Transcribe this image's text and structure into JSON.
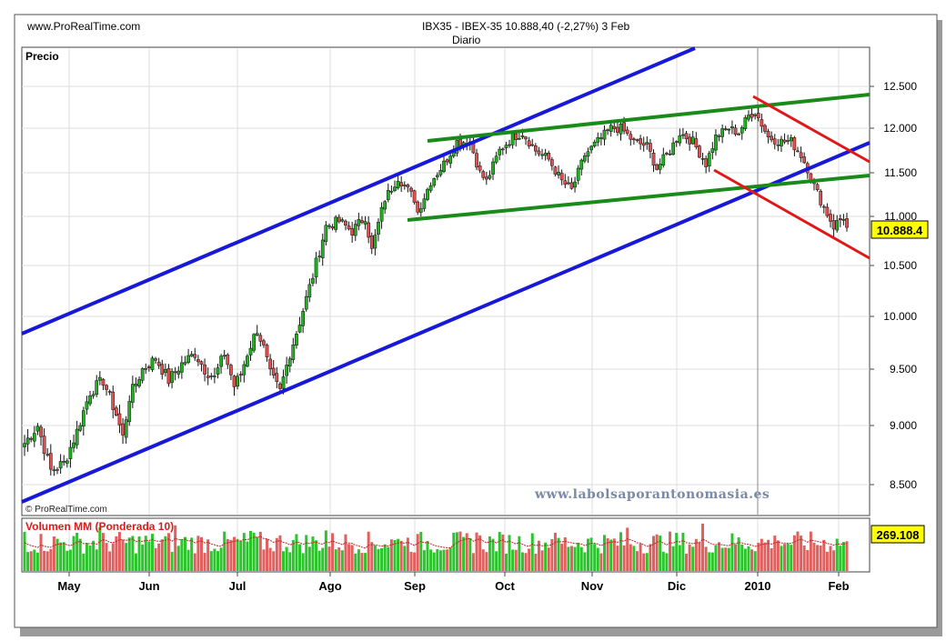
{
  "header": {
    "site": "www.ProRealTime.com",
    "instrument_line": "IBX35 - IBEX-35     10.888,40 (-2,27%)     3 Feb",
    "period": "Diario"
  },
  "price_panel": {
    "label": "Precio",
    "watermark": "© ProRealTime.com",
    "website": "www.labolsaporantonomasia.es",
    "last_price_label": "10.888.4"
  },
  "volume_panel": {
    "label": "Volumen MM (Ponderada 10)",
    "last_value_label": "269.108"
  },
  "colors": {
    "up": "#22b022",
    "down": "#e05050",
    "blue_channel": "#1818d8",
    "green_channel": "#1a8a1a",
    "red_channel": "#e01818",
    "volume_up": "#2cc42c",
    "volume_down": "#e06060",
    "volume_avg": "#c02020",
    "website_text": "#7a8aa8"
  },
  "chart_data": {
    "type": "candlestick",
    "title": "IBX35 - IBEX-35 10.888,40 (-2,27%) 3 Feb",
    "y_ticks": [
      "12.500",
      "12.000",
      "11.500",
      "11.000",
      "10.500",
      "10.000",
      "9.500",
      "9.000",
      "8.500"
    ],
    "y_tick_values": [
      12500,
      12000,
      11500,
      11000,
      10500,
      10000,
      9500,
      9000,
      8500
    ],
    "ylim": [
      8350,
      12750
    ],
    "x_labels": [
      "May",
      "Jun",
      "Jul",
      "Ago",
      "Sep",
      "Oct",
      "Nov",
      "Dic",
      "2010",
      "Feb"
    ],
    "close_path": [
      [
        0,
        8850
      ],
      [
        4,
        9000
      ],
      [
        8,
        8620
      ],
      [
        12,
        8680
      ],
      [
        16,
        8950
      ],
      [
        20,
        9300
      ],
      [
        24,
        9400
      ],
      [
        26,
        9250
      ],
      [
        28,
        9100
      ],
      [
        30,
        8900
      ],
      [
        32,
        9250
      ],
      [
        36,
        9500
      ],
      [
        40,
        9600
      ],
      [
        44,
        9400
      ],
      [
        48,
        9550
      ],
      [
        52,
        9650
      ],
      [
        55,
        9500
      ],
      [
        58,
        9420
      ],
      [
        61,
        9650
      ],
      [
        64,
        9350
      ],
      [
        66,
        9450
      ],
      [
        68,
        9650
      ],
      [
        71,
        9880
      ],
      [
        73,
        9700
      ],
      [
        75,
        9450
      ],
      [
        78,
        9300
      ],
      [
        81,
        9650
      ],
      [
        84,
        9950
      ],
      [
        88,
        10400
      ],
      [
        92,
        10900
      ],
      [
        96,
        10950
      ],
      [
        100,
        10850
      ],
      [
        104,
        11000
      ],
      [
        106,
        10650
      ],
      [
        110,
        11200
      ],
      [
        114,
        11450
      ],
      [
        117,
        11300
      ],
      [
        119,
        11200
      ],
      [
        120,
        11050
      ],
      [
        124,
        11400
      ],
      [
        128,
        11600
      ],
      [
        132,
        11850
      ],
      [
        136,
        11850
      ],
      [
        139,
        11500
      ],
      [
        141,
        11400
      ],
      [
        145,
        11750
      ],
      [
        149,
        11900
      ],
      [
        152,
        11950
      ],
      [
        156,
        11750
      ],
      [
        160,
        11650
      ],
      [
        164,
        11400
      ],
      [
        167,
        11300
      ],
      [
        171,
        11700
      ],
      [
        175,
        11850
      ],
      [
        179,
        12000
      ],
      [
        182,
        12000
      ],
      [
        186,
        11850
      ],
      [
        190,
        11800
      ],
      [
        193,
        11550
      ],
      [
        197,
        11750
      ],
      [
        200,
        11950
      ],
      [
        204,
        11850
      ],
      [
        208,
        11600
      ],
      [
        211,
        11900
      ],
      [
        215,
        12000
      ],
      [
        218,
        11950
      ],
      [
        221,
        12150
      ],
      [
        223,
        12200
      ],
      [
        225,
        12050
      ],
      [
        227,
        11900
      ],
      [
        231,
        11850
      ],
      [
        234,
        11850
      ],
      [
        237,
        11700
      ],
      [
        239,
        11550
      ],
      [
        241,
        11350
      ],
      [
        244,
        11100
      ],
      [
        247,
        10900
      ],
      [
        250,
        11000
      ],
      [
        251,
        10888
      ]
    ],
    "volume_range": [
      0,
      600
    ],
    "volume_label_value": 269.108
  }
}
